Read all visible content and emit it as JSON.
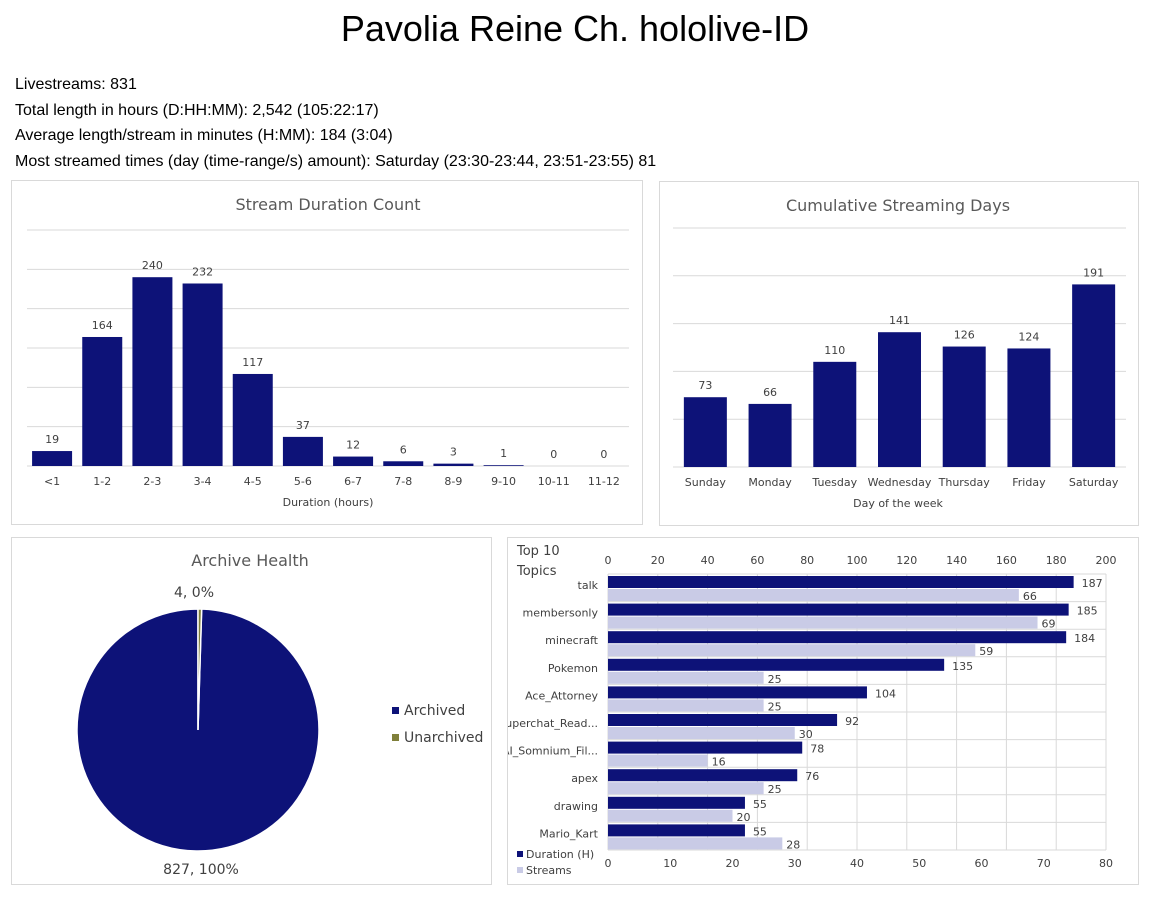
{
  "page": {
    "title": "Pavolia Reine Ch. hololive-ID"
  },
  "stats": {
    "livestreams": "Livestreams: 831",
    "total_length": "Total length in hours (D:HH:MM): 2,542 (105:22:17)",
    "average_length": "Average length/stream in minutes (H:MM): 184 (3:04)",
    "most_streamed": "Most streamed times (day (time-range/s) amount): Saturday (23:30-23:44, 23:51-23:55) 81"
  },
  "colors": {
    "primary": "#0d1278",
    "secondary": "#c9cbe6",
    "unarchived": "#7f7f3a",
    "grid": "#d9d9d9"
  },
  "chart_data": [
    {
      "type": "bar",
      "title": "Stream Duration Count",
      "xlabel": "Duration (hours)",
      "ylabel": "",
      "ylim": [
        0,
        300
      ],
      "grid": true,
      "categories": [
        "<1",
        "1-2",
        "2-3",
        "3-4",
        "4-5",
        "5-6",
        "6-7",
        "7-8",
        "8-9",
        "9-10",
        "10-11",
        "11-12"
      ],
      "values": [
        19,
        164,
        240,
        232,
        117,
        37,
        12,
        6,
        3,
        1,
        0,
        0
      ]
    },
    {
      "type": "bar",
      "title": "Cumulative Streaming Days",
      "xlabel": "Day of the week",
      "ylabel": "",
      "ylim": [
        0,
        250
      ],
      "grid": true,
      "categories": [
        "Sunday",
        "Monday",
        "Tuesday",
        "Wednesday",
        "Thursday",
        "Friday",
        "Saturday"
      ],
      "values": [
        73,
        66,
        110,
        141,
        126,
        124,
        191
      ]
    },
    {
      "type": "pie",
      "title": "Archive Health",
      "legend": "right",
      "labels": [
        "Archived",
        "Unarchived"
      ],
      "values": [
        827,
        4
      ],
      "data_labels": [
        "827, 100%",
        "4, 0%"
      ]
    },
    {
      "type": "bar",
      "orientation": "horizontal",
      "title": "Top 10 Topics",
      "legend": "bottom-left",
      "categories": [
        "talk",
        "membersonly",
        "minecraft",
        "Pokemon",
        "Ace_Attorney",
        "Superchat_Read...",
        "AI_Somnium_Fil...",
        "apex",
        "drawing",
        "Mario_Kart"
      ],
      "series": [
        {
          "name": "Duration (H)",
          "axis": "top",
          "values": [
            187,
            185,
            184,
            135,
            104,
            92,
            78,
            76,
            55,
            55
          ]
        },
        {
          "name": "Streams",
          "axis": "bottom",
          "values": [
            66,
            69,
            59,
            25,
            25,
            30,
            16,
            25,
            20,
            28
          ]
        }
      ],
      "xlim_top": [
        0,
        200
      ],
      "xticks_top": [
        0,
        20,
        40,
        60,
        80,
        100,
        120,
        140,
        160,
        180,
        200
      ],
      "xlim_bottom": [
        0,
        80
      ],
      "xticks_bottom": [
        0,
        10,
        20,
        30,
        40,
        50,
        60,
        70,
        80
      ],
      "grid": true
    }
  ]
}
